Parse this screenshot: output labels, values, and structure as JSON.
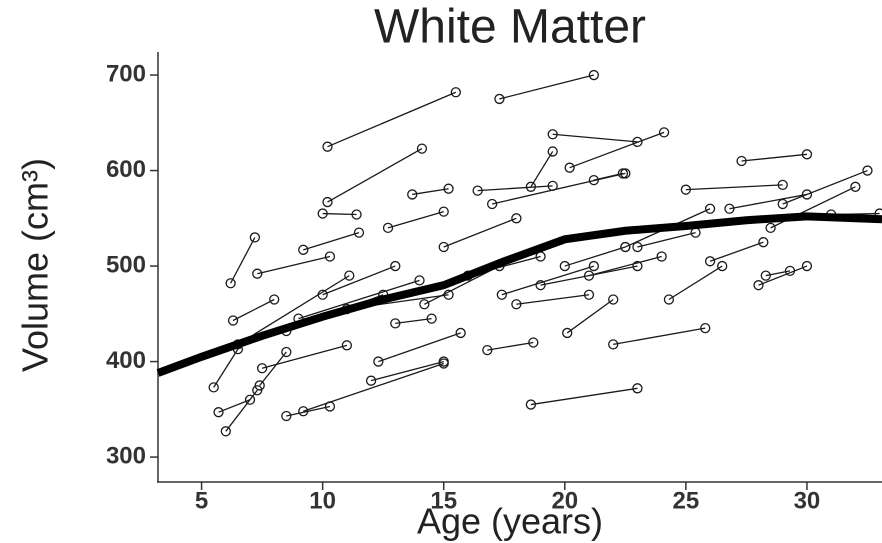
{
  "chart_data": {
    "type": "line",
    "title": "White Matter",
    "x_label": "Age (years)",
    "y_label": "Volume (cm³)",
    "xlim": [
      3.2,
      33.1
    ],
    "ylim": [
      276,
      721
    ],
    "xticks": [
      5,
      10,
      15,
      20,
      25,
      30
    ],
    "yticks": [
      300,
      400,
      500,
      600,
      700
    ],
    "grid": false,
    "color": "#1a1a1a",
    "series": [
      {
        "x": [
          10.2,
          15.5
        ],
        "values": [
          625,
          682
        ]
      },
      {
        "x": [
          17.3,
          21.2
        ],
        "values": [
          675,
          700
        ]
      },
      {
        "x": [
          10.2,
          14.1
        ],
        "values": [
          567,
          623
        ]
      },
      {
        "x": [
          19.5,
          23
        ],
        "values": [
          638,
          630
        ]
      },
      {
        "x": [
          20.2,
          24.1
        ],
        "values": [
          603,
          640
        ]
      },
      {
        "x": [
          18.6,
          19.5
        ],
        "values": [
          583,
          620
        ]
      },
      {
        "x": [
          13.7,
          15.2
        ],
        "values": [
          575,
          581
        ]
      },
      {
        "x": [
          16.4,
          19.5
        ],
        "values": [
          579,
          584
        ]
      },
      {
        "x": [
          17,
          22.5
        ],
        "values": [
          565,
          597
        ]
      },
      {
        "x": [
          21.2,
          22.4
        ],
        "values": [
          590,
          597
        ]
      },
      {
        "x": [
          10,
          11.4
        ],
        "values": [
          555,
          554
        ]
      },
      {
        "x": [
          12.7,
          15
        ],
        "values": [
          540,
          557
        ]
      },
      {
        "x": [
          9.2,
          11.5
        ],
        "values": [
          517,
          535
        ]
      },
      {
        "x": [
          6.2,
          7.2
        ],
        "values": [
          482,
          530
        ]
      },
      {
        "x": [
          7.3,
          10.3
        ],
        "values": [
          492,
          510
        ]
      },
      {
        "x": [
          6.3,
          8
        ],
        "values": [
          443,
          465
        ]
      },
      {
        "x": [
          6.5,
          11.1
        ],
        "values": [
          418,
          490
        ]
      },
      {
        "x": [
          5.5,
          6.5
        ],
        "values": [
          373,
          413
        ]
      },
      {
        "x": [
          5.7,
          7
        ],
        "values": [
          347,
          360
        ]
      },
      {
        "x": [
          6,
          7.3
        ],
        "values": [
          327,
          370
        ]
      },
      {
        "x": [
          7.4,
          8.5
        ],
        "values": [
          375,
          410
        ]
      },
      {
        "x": [
          7.5,
          11
        ],
        "values": [
          393,
          417
        ]
      },
      {
        "x": [
          8.5,
          10.3
        ],
        "values": [
          343,
          353
        ]
      },
      {
        "x": [
          9.2,
          15
        ],
        "values": [
          348,
          398
        ]
      },
      {
        "x": [
          12,
          15
        ],
        "values": [
          380,
          400
        ]
      },
      {
        "x": [
          16.8,
          18.7
        ],
        "values": [
          412,
          420
        ]
      },
      {
        "x": [
          18.6,
          23
        ],
        "values": [
          355,
          372
        ]
      },
      {
        "x": [
          20.1,
          22
        ],
        "values": [
          430,
          465
        ]
      },
      {
        "x": [
          22,
          25.8
        ],
        "values": [
          418,
          435
        ]
      },
      {
        "x": [
          8.5,
          12.5
        ],
        "values": [
          432,
          470
        ]
      },
      {
        "x": [
          9,
          14
        ],
        "values": [
          445,
          485
        ]
      },
      {
        "x": [
          10,
          13
        ],
        "values": [
          470,
          500
        ]
      },
      {
        "x": [
          11,
          15.2
        ],
        "values": [
          455,
          470
        ]
      },
      {
        "x": [
          12.3,
          15.7
        ],
        "values": [
          400,
          430
        ]
      },
      {
        "x": [
          13,
          14.5
        ],
        "values": [
          440,
          445
        ]
      },
      {
        "x": [
          14.2,
          17.3
        ],
        "values": [
          460,
          500
        ]
      },
      {
        "x": [
          15,
          18
        ],
        "values": [
          520,
          550
        ]
      },
      {
        "x": [
          16,
          19
        ],
        "values": [
          490,
          510
        ]
      },
      {
        "x": [
          17.4,
          21.2
        ],
        "values": [
          470,
          500
        ]
      },
      {
        "x": [
          18,
          21
        ],
        "values": [
          460,
          470
        ]
      },
      {
        "x": [
          19,
          23
        ],
        "values": [
          480,
          500
        ]
      },
      {
        "x": [
          20,
          22.5
        ],
        "values": [
          500,
          520
        ]
      },
      {
        "x": [
          21,
          24
        ],
        "values": [
          490,
          510
        ]
      },
      {
        "x": [
          22.5,
          26
        ],
        "values": [
          520,
          560
        ]
      },
      {
        "x": [
          23,
          25.4
        ],
        "values": [
          520,
          535
        ]
      },
      {
        "x": [
          24.3,
          26.5
        ],
        "values": [
          465,
          500
        ]
      },
      {
        "x": [
          25,
          29
        ],
        "values": [
          580,
          585
        ]
      },
      {
        "x": [
          26.8,
          30
        ],
        "values": [
          560,
          575
        ]
      },
      {
        "x": [
          27.3,
          30
        ],
        "values": [
          610,
          617
        ]
      },
      {
        "x": [
          28,
          30
        ],
        "values": [
          480,
          500
        ]
      },
      {
        "x": [
          28.5,
          32
        ],
        "values": [
          540,
          583
        ]
      },
      {
        "x": [
          29,
          32.5
        ],
        "values": [
          565,
          600
        ]
      },
      {
        "x": [
          28.3,
          29.3
        ],
        "values": [
          490,
          495
        ]
      },
      {
        "x": [
          31,
          33
        ],
        "values": [
          554,
          555
        ]
      },
      {
        "x": [
          26,
          28.2
        ],
        "values": [
          505,
          525
        ]
      }
    ],
    "fit": {
      "color": "#000000",
      "x": [
        3.2,
        5,
        7.5,
        10,
        12.5,
        15,
        17.5,
        20,
        22.5,
        25,
        27.5,
        30,
        33.1
      ],
      "values": [
        388,
        405,
        427,
        447,
        465,
        480,
        505,
        528,
        537,
        542,
        548,
        552,
        549
      ]
    }
  }
}
